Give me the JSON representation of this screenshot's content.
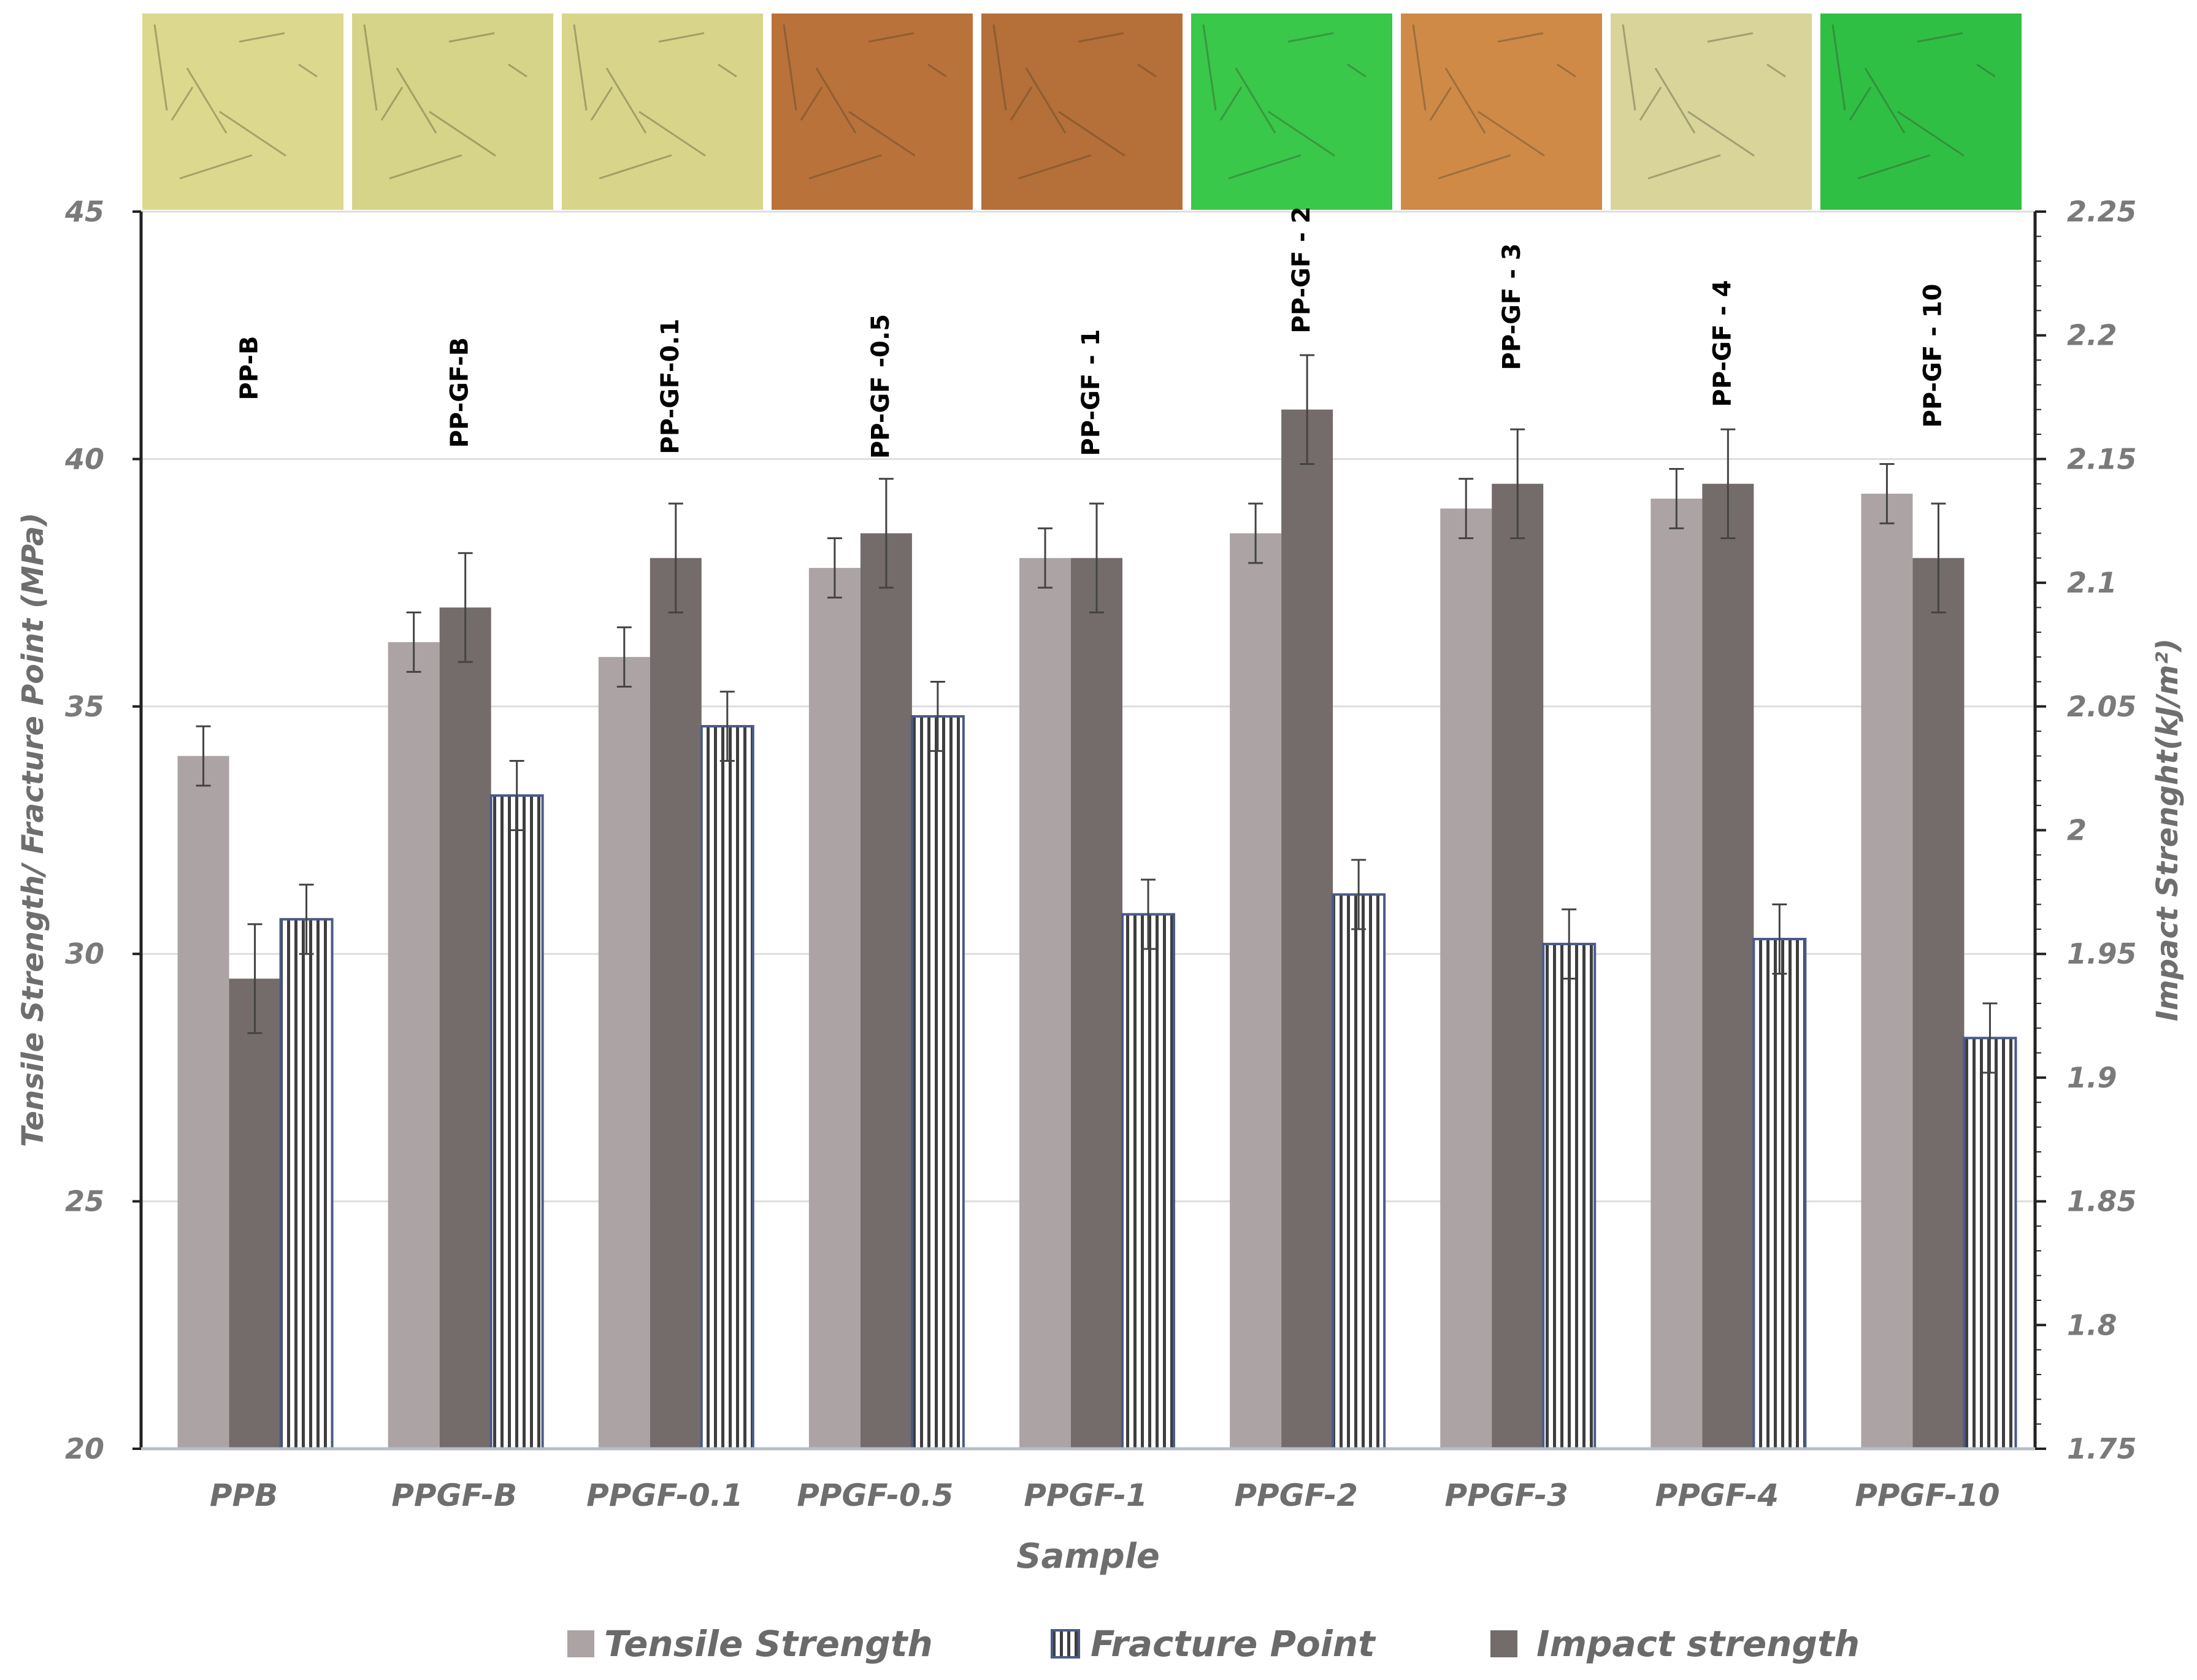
{
  "chart_data": {
    "type": "bar",
    "xlabel": "Sample",
    "ylabel": "Tensile Strength/ Fracture Point  (MPa)",
    "y2label": "Impact Strenght(kJ/m²)",
    "ylim": [
      20,
      45
    ],
    "y2lim": [
      1.75,
      2.25
    ],
    "yticks": [
      "20",
      "25",
      "30",
      "35",
      "40",
      "45"
    ],
    "y2ticks": [
      "1.75",
      "1.8",
      "1.85",
      "1.9",
      "1.95",
      "2",
      "2.05",
      "2.1",
      "2.15",
      "2.2",
      "2.25"
    ],
    "grid": "horizontal",
    "legend_position": "bottom",
    "categories": [
      "PPB",
      "PPGF-B",
      "PPGF-0.1",
      "PPGF-0.5",
      "PPGF-1",
      "PPGF-2",
      "PPGF-3",
      "PPGF-4",
      "PPGF-10"
    ],
    "sample_labels": [
      "PP-B",
      "PP-GF-B",
      "PP-GF-0.1",
      "PP-GF -0.5",
      "PP-GF - 1",
      "PP-GF - 2",
      "PP-GF - 3",
      "PP-GF - 4",
      "PP-GF - 10"
    ],
    "micrograph_colors": [
      "#dcd98e",
      "#d6d488",
      "#d8d58a",
      "#b9723a",
      "#b56f38",
      "#39c84a",
      "#cf8a48",
      "#d8d49a",
      "#2fbf45"
    ],
    "series": [
      {
        "name": "Tensile Strength",
        "axis": "left",
        "color": "#aca4a4",
        "pattern": "solid",
        "values": [
          34.0,
          36.3,
          36.0,
          37.8,
          38.0,
          38.5,
          39.0,
          39.2,
          39.3
        ],
        "errors": [
          0.6,
          0.6,
          0.6,
          0.6,
          0.6,
          0.6,
          0.6,
          0.6,
          0.6
        ]
      },
      {
        "name": "Impact strength",
        "axis": "right",
        "color": "#746b6b",
        "pattern": "solid",
        "values": [
          1.94,
          2.09,
          2.11,
          2.12,
          2.11,
          2.17,
          2.14,
          2.14,
          2.11
        ],
        "errors": [
          0.022,
          0.022,
          0.022,
          0.022,
          0.022,
          0.022,
          0.022,
          0.022,
          0.022
        ]
      },
      {
        "name": "Fracture Point",
        "axis": "left",
        "color": "#4a5a88",
        "pattern": "vertical-stripes",
        "values": [
          30.7,
          33.2,
          34.6,
          34.8,
          30.8,
          31.2,
          30.2,
          30.3,
          28.3
        ],
        "errors": [
          0.7,
          0.7,
          0.7,
          0.7,
          0.7,
          0.7,
          0.7,
          0.7,
          0.7
        ]
      }
    ],
    "legend": [
      "Tensile Strength",
      "Fracture Point",
      "Impact strength"
    ]
  }
}
